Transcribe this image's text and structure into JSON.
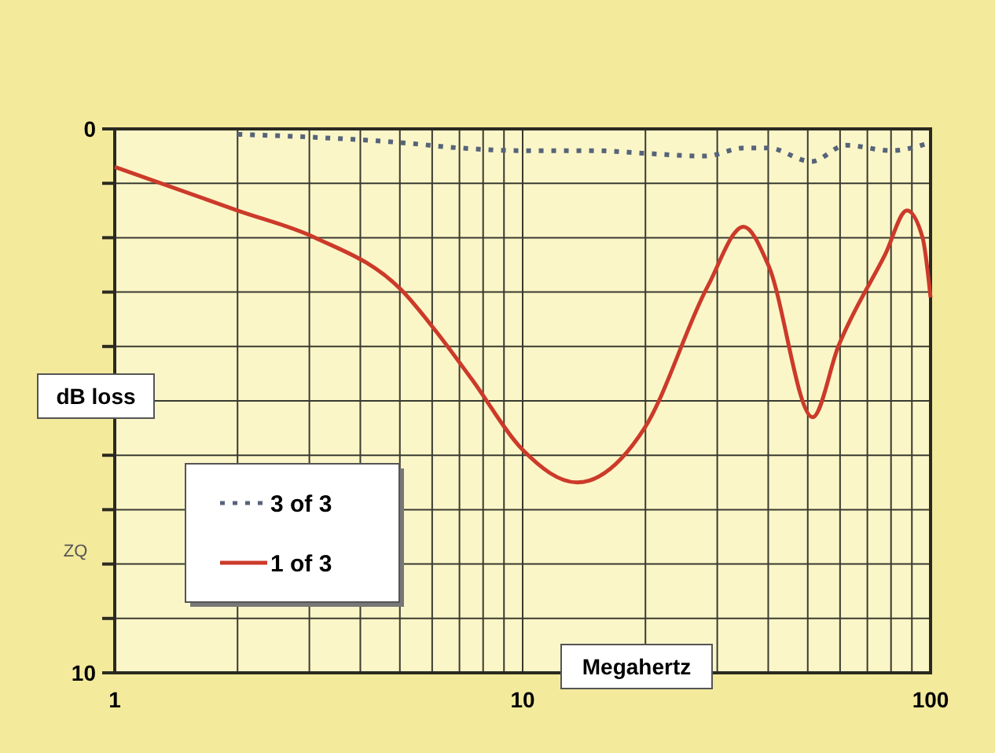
{
  "chart_data": {
    "type": "line",
    "xlabel": "Megahertz",
    "ylabel": "dB loss",
    "log": "x",
    "xlim": [
      1,
      100
    ],
    "xticks": [
      1,
      {
        "value": 2,
        "label": null
      },
      {
        "value": 3,
        "label": null
      },
      {
        "value": 4,
        "label": null
      },
      {
        "value": 5,
        "label": null
      },
      {
        "value": 6,
        "label": null
      },
      {
        "value": 7,
        "label": null
      },
      {
        "value": 8,
        "label": null
      },
      {
        "value": 9,
        "label": null
      },
      10,
      {
        "value": 20,
        "label": null
      },
      {
        "value": 30,
        "label": null
      },
      {
        "value": 40,
        "label": null
      },
      {
        "value": 50,
        "label": null
      },
      {
        "value": 60,
        "label": null
      },
      {
        "value": 70,
        "label": null
      },
      {
        "value": 80,
        "label": null
      },
      {
        "value": 90,
        "label": null
      },
      100
    ],
    "ylim": [
      10,
      0
    ],
    "yticks": [
      0,
      {
        "value": 1,
        "label": null
      },
      {
        "value": 2,
        "label": null
      },
      {
        "value": 3,
        "label": null
      },
      {
        "value": 4,
        "label": null
      },
      {
        "value": 5,
        "label": null
      },
      {
        "value": 6,
        "label": null
      },
      {
        "value": 7,
        "label": null
      },
      {
        "value": 8,
        "label": null
      },
      {
        "value": 9,
        "label": null
      },
      10
    ],
    "grid": true,
    "legend": "bottom left",
    "annotations": [
      "ZQ"
    ],
    "series": [
      {
        "name": "3 of 3",
        "color": "#56647a",
        "line_style": "dotted",
        "x": [
          2,
          3,
          5,
          7,
          10,
          15,
          20,
          28,
          35,
          40,
          51,
          62,
          80,
          100
        ],
        "values": [
          0.1,
          0.15,
          0.25,
          0.35,
          0.4,
          0.4,
          0.45,
          0.5,
          0.35,
          0.35,
          0.6,
          0.3,
          0.4,
          0.25
        ]
      },
      {
        "name": "1 of 3",
        "color": "#cc3a2a",
        "line_style": "solid",
        "x": [
          1,
          2,
          3.1,
          5.1,
          6.1,
          7.5,
          10,
          13.6,
          19.9,
          28.4,
          34.8,
          40,
          51.4,
          59.4,
          77.5,
          87.5,
          95.6,
          100
        ],
        "values": [
          0.7,
          1.5,
          2,
          3,
          3.7,
          4.6,
          5.9,
          6.5,
          5.5,
          2.9,
          1.8,
          2.5,
          5.3,
          4,
          2.3,
          1.5,
          2,
          3.1
        ]
      }
    ]
  }
}
